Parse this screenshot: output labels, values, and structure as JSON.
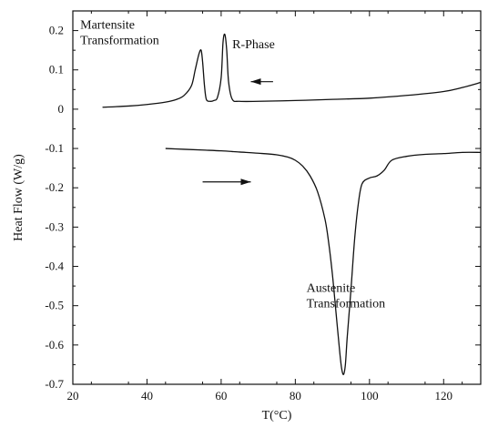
{
  "chart_data": {
    "type": "line",
    "xlabel": "T(°C)",
    "ylabel": "Heat Flow (W/g)",
    "xlim": [
      20,
      130
    ],
    "ylim": [
      -0.7,
      0.25
    ],
    "x_ticks": [
      "20",
      "40",
      "60",
      "80",
      "100",
      "120"
    ],
    "y_ticks": [
      "0.2",
      "0.1",
      "0",
      "-0.1",
      "-0.2",
      "-0.3",
      "-0.4",
      "-0.5",
      "-0.6",
      "-0.7"
    ],
    "grid": false,
    "series": [
      {
        "x": [
          28,
          35,
          40,
          45,
          48,
          50,
          52,
          53,
          54,
          54.6,
          55,
          55.5,
          56,
          57,
          58,
          59,
          60,
          60.5,
          61,
          61.5,
          62,
          63,
          65,
          70,
          80,
          90,
          100,
          110,
          120,
          125,
          130
        ],
        "y": [
          0.005,
          0.008,
          0.012,
          0.018,
          0.025,
          0.035,
          0.06,
          0.1,
          0.14,
          0.15,
          0.12,
          0.06,
          0.025,
          0.02,
          0.022,
          0.03,
          0.08,
          0.17,
          0.19,
          0.15,
          0.07,
          0.025,
          0.02,
          0.02,
          0.022,
          0.025,
          0.028,
          0.035,
          0.045,
          0.055,
          0.068
        ]
      },
      {
        "x": [
          45,
          50,
          55,
          60,
          65,
          70,
          75,
          78,
          80,
          82,
          84,
          86,
          88,
          89,
          90,
          91,
          92,
          92.5,
          93,
          93.5,
          94,
          95,
          96,
          97,
          98,
          100,
          102,
          104,
          106,
          110,
          115,
          120,
          125,
          130
        ],
        "y": [
          -0.1,
          -0.102,
          -0.104,
          -0.106,
          -0.109,
          -0.112,
          -0.116,
          -0.122,
          -0.13,
          -0.145,
          -0.17,
          -0.21,
          -0.28,
          -0.34,
          -0.42,
          -0.52,
          -0.62,
          -0.66,
          -0.675,
          -0.65,
          -0.58,
          -0.46,
          -0.33,
          -0.24,
          -0.19,
          -0.175,
          -0.17,
          -0.155,
          -0.13,
          -0.12,
          -0.115,
          -0.113,
          -0.11,
          -0.11
        ]
      }
    ],
    "annotations": [
      {
        "lines": [
          "Martensite",
          "Transformation"
        ],
        "x": 22,
        "y": 0.205
      },
      {
        "lines": [
          "R-Phase"
        ],
        "x": 63,
        "y": 0.155
      },
      {
        "lines": [
          "Austenite",
          "Transformation"
        ],
        "x": 83,
        "y": -0.465
      }
    ],
    "arrows": [
      {
        "direction": "left",
        "x_from": 74,
        "x_to": 68,
        "y": 0.07
      },
      {
        "direction": "right",
        "x_from": 55,
        "x_to": 68,
        "y": -0.185
      }
    ]
  }
}
